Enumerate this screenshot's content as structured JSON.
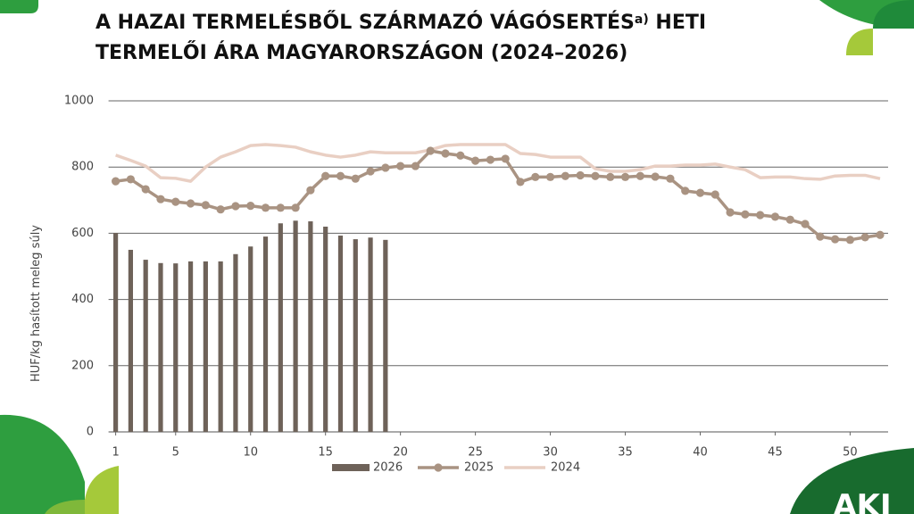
{
  "chart_data": {
    "type": "combo",
    "title_parts": [
      "A HAZAI TERMELÉSBŐL SZÁRMAZÓ VÁGÓSERTÉS",
      "a)",
      " HETI",
      "TERMELŐI ÁRA MAGYARORSZÁGON (2024–2026)"
    ],
    "ylabel": "HUF/kg hasított meleg súly",
    "logo": "AKI",
    "xlim": [
      1,
      52
    ],
    "xticks": [
      1,
      5,
      10,
      15,
      20,
      25,
      30,
      35,
      40,
      45,
      50
    ],
    "ylim": [
      0,
      1000
    ],
    "yticks": [
      0,
      200,
      400,
      600,
      800,
      1000
    ],
    "grid": true,
    "legend": "bottom",
    "series": [
      {
        "name": "2026",
        "kind": "bar",
        "color": "#6e6259",
        "x": [
          1,
          2,
          3,
          4,
          5,
          6,
          7,
          8,
          9,
          10,
          11,
          12,
          13,
          14,
          15,
          16,
          17,
          18,
          19
        ],
        "values": [
          601,
          550,
          520,
          510,
          509,
          515,
          515,
          515,
          537,
          560,
          590,
          630,
          638,
          636,
          620,
          593,
          582,
          587,
          580
        ]
      },
      {
        "name": "2025",
        "kind": "line",
        "markers": true,
        "color": "#a99382",
        "x": [
          1,
          2,
          3,
          4,
          5,
          6,
          7,
          8,
          9,
          10,
          11,
          12,
          13,
          14,
          15,
          16,
          17,
          18,
          19,
          20,
          21,
          22,
          23,
          24,
          25,
          26,
          27,
          28,
          29,
          30,
          31,
          32,
          33,
          34,
          35,
          36,
          37,
          38,
          39,
          40,
          41,
          42,
          43,
          44,
          45,
          46,
          47,
          48,
          49,
          50,
          51,
          52
        ],
        "values": [
          757,
          763,
          733,
          703,
          695,
          690,
          685,
          672,
          682,
          683,
          677,
          677,
          677,
          730,
          773,
          773,
          765,
          787,
          798,
          803,
          803,
          849,
          841,
          835,
          819,
          822,
          825,
          755,
          770,
          770,
          773,
          775,
          773,
          770,
          770,
          773,
          771,
          765,
          728,
          722,
          717,
          663,
          657,
          655,
          650,
          641,
          628,
          590,
          582,
          580,
          588,
          595
        ]
      },
      {
        "name": "2024",
        "kind": "line",
        "markers": false,
        "color": "#e9cfc3",
        "x": [
          1,
          2,
          3,
          4,
          5,
          6,
          7,
          8,
          9,
          10,
          11,
          12,
          13,
          14,
          15,
          16,
          17,
          18,
          19,
          20,
          21,
          22,
          23,
          24,
          25,
          26,
          27,
          28,
          29,
          30,
          31,
          32,
          33,
          34,
          35,
          36,
          37,
          38,
          39,
          40,
          41,
          42,
          43,
          44,
          45,
          46,
          47,
          48,
          49,
          50,
          51,
          52
        ],
        "values": [
          836,
          820,
          803,
          768,
          766,
          757,
          800,
          830,
          846,
          865,
          868,
          865,
          860,
          846,
          836,
          830,
          836,
          846,
          843,
          843,
          843,
          852,
          865,
          868,
          868,
          868,
          868,
          841,
          838,
          830,
          830,
          830,
          795,
          787,
          787,
          792,
          803,
          803,
          806,
          806,
          809,
          800,
          792,
          768,
          770,
          770,
          765,
          763,
          773,
          775,
          775,
          765
        ]
      }
    ]
  }
}
